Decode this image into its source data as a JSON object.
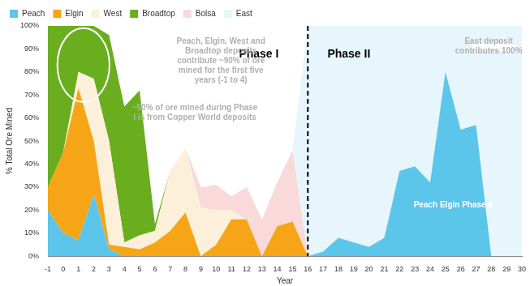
{
  "chart_data": {
    "type": "stacked_area",
    "x_label": "Year",
    "y_label": "% Total Ore Mined",
    "categories": [
      -1,
      0,
      1,
      2,
      3,
      4,
      5,
      6,
      7,
      8,
      9,
      10,
      11,
      12,
      13,
      14,
      15,
      16,
      17,
      18,
      19,
      20,
      21,
      22,
      23,
      24,
      25,
      26,
      27,
      28,
      29,
      30
    ],
    "series": [
      {
        "name": "Peach",
        "color": "#5BC5EA",
        "values": [
          20,
          10,
          7,
          27,
          3,
          0,
          0,
          0,
          0,
          0,
          0,
          0,
          0,
          0,
          0,
          0,
          0,
          0,
          2,
          8,
          6,
          4,
          8,
          37,
          39,
          32,
          80,
          55,
          57,
          0,
          0,
          0
        ]
      },
      {
        "name": "Elgin",
        "color": "#F5A516",
        "values": [
          10,
          35,
          66,
          23,
          2,
          4,
          3,
          6,
          11,
          19,
          0,
          5,
          16,
          16,
          0,
          13,
          15,
          0,
          0,
          0,
          0,
          0,
          0,
          0,
          0,
          0,
          0,
          0,
          0,
          0,
          0,
          0
        ]
      },
      {
        "name": "West",
        "color": "#FCF0DA",
        "values": [
          0,
          0,
          7,
          27,
          45,
          2,
          6,
          5,
          26,
          28,
          21,
          15,
          4,
          0,
          0,
          0,
          0,
          0,
          0,
          0,
          0,
          0,
          0,
          0,
          0,
          0,
          0,
          0,
          0,
          0,
          0,
          0
        ]
      },
      {
        "name": "Broadtop",
        "color": "#6AAE1F",
        "values": [
          70,
          55,
          20,
          23,
          46,
          59,
          63,
          3,
          0,
          0,
          0,
          0,
          0,
          0,
          0,
          0,
          0,
          0,
          0,
          0,
          0,
          0,
          0,
          0,
          0,
          0,
          0,
          0,
          0,
          0,
          0,
          0
        ]
      },
      {
        "name": "Bolsa",
        "color": "#F9D9D9",
        "values": [
          0,
          0,
          0,
          0,
          0,
          0,
          0,
          0,
          0,
          0,
          9,
          11,
          6,
          14,
          16,
          19,
          31,
          0,
          0,
          0,
          0,
          0,
          0,
          0,
          0,
          0,
          0,
          0,
          0,
          0,
          0,
          0
        ]
      },
      {
        "name": "East",
        "color": "#E6F6FC",
        "values": [
          0,
          0,
          0,
          0,
          0,
          0,
          0,
          0,
          0,
          0,
          0,
          0,
          0,
          0,
          0,
          0,
          0,
          100,
          98,
          92,
          94,
          96,
          92,
          63,
          61,
          68,
          20,
          45,
          43,
          100,
          100,
          100
        ]
      }
    ],
    "stacked": true,
    "ylim": [
      0,
      100
    ],
    "yticks": [
      {
        "value": 0,
        "label": "0%"
      },
      {
        "value": 10,
        "label": "10%"
      },
      {
        "value": 20,
        "label": "20%"
      },
      {
        "value": 30,
        "label": "30%"
      },
      {
        "value": 40,
        "label": "40%"
      },
      {
        "value": 50,
        "label": "50%"
      },
      {
        "value": 60,
        "label": "60%"
      },
      {
        "value": 70,
        "label": "70%"
      },
      {
        "value": 80,
        "label": "80%"
      },
      {
        "value": 90,
        "label": "90%"
      },
      {
        "value": 100,
        "label": "100%"
      }
    ],
    "grid": false,
    "legend": "top",
    "phase_divider": 16,
    "annotations": [
      {
        "text": "Phase I"
      },
      {
        "text": "Phase II"
      },
      {
        "text": "Peach, Elgin, West and\nBroadtop deposits\ncontribute ~90% of ore\nmined for the first five\nyears (-1 to 4)"
      },
      {
        "text": "~50% of ore mined during Phase\nI is from Copper World deposits"
      },
      {
        "text": "East deposit\ncontributes 100%"
      },
      {
        "text": "Peach Elgin Phase 4"
      }
    ]
  }
}
